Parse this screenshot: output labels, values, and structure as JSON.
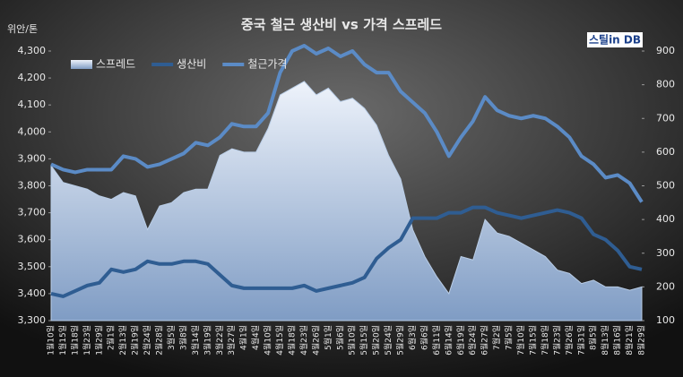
{
  "chart_data": {
    "type": "line",
    "title": "중국 철근 생산비 vs 가격 스프레드",
    "y_label": "위안/톤",
    "source": "스틸in DB",
    "legend": "top-left",
    "categories": [
      "1월10일",
      "1월15일",
      "1월18일",
      "1월23일",
      "1월29일",
      "2월1일",
      "2월13일",
      "2월19일",
      "2월24일",
      "2월28일",
      "3월5일",
      "3월8일",
      "3월14일",
      "3월19일",
      "3월22일",
      "3월27일",
      "4월1일",
      "4월4일",
      "4월10일",
      "4월15일",
      "4월18일",
      "4월23일",
      "4월26일",
      "5월1일",
      "5월6일",
      "5월10일",
      "5월15일",
      "5월20일",
      "5월24일",
      "5월29일",
      "6월3일",
      "6월6일",
      "6월11일",
      "6월14일",
      "6월19일",
      "6월24일",
      "6월27일",
      "7월2일",
      "7월5일",
      "7월10일",
      "7월15일",
      "7월18일",
      "7월23일",
      "7월26일",
      "7월31일",
      "8월5일",
      "8월13일",
      "8월16일",
      "8월21일",
      "8월29일"
    ],
    "series": [
      {
        "name": "스프레드",
        "style": "area",
        "axis": "y2",
        "color": "#b9cde6",
        "values": [
          560,
          510,
          500,
          490,
          470,
          460,
          480,
          470,
          370,
          440,
          450,
          480,
          490,
          490,
          590,
          610,
          600,
          600,
          670,
          770,
          790,
          810,
          770,
          790,
          750,
          760,
          730,
          680,
          590,
          520,
          370,
          290,
          230,
          180,
          290,
          280,
          400,
          360,
          350,
          330,
          310,
          290,
          250,
          240,
          210,
          220,
          200,
          200,
          190,
          200
        ]
      },
      {
        "name": "생산비",
        "style": "line",
        "color": "#2f5d92",
        "values": [
          3400,
          3390,
          3410,
          3430,
          3440,
          3490,
          3480,
          3490,
          3520,
          3510,
          3510,
          3520,
          3520,
          3510,
          3470,
          3430,
          3420,
          3420,
          3420,
          3420,
          3420,
          3430,
          3410,
          3420,
          3430,
          3440,
          3460,
          3530,
          3570,
          3600,
          3680,
          3680,
          3680,
          3700,
          3700,
          3720,
          3720,
          3700,
          3690,
          3680,
          3690,
          3700,
          3710,
          3700,
          3680,
          3620,
          3600,
          3560,
          3500,
          3490
        ]
      },
      {
        "name": "철근가격",
        "style": "line",
        "color": "#5b8bc6",
        "values": [
          3880,
          3860,
          3850,
          3860,
          3860,
          3860,
          3910,
          3900,
          3870,
          3880,
          3900,
          3920,
          3960,
          3950,
          3980,
          4030,
          4020,
          4020,
          4070,
          4220,
          4300,
          4320,
          4290,
          4310,
          4280,
          4300,
          4250,
          4220,
          4220,
          4150,
          4110,
          4070,
          4000,
          3910,
          3980,
          4040,
          4130,
          4080,
          4060,
          4050,
          4060,
          4050,
          4020,
          3980,
          3910,
          3880,
          3830,
          3840,
          3810,
          3740
        ]
      }
    ],
    "ylim": [
      3300,
      4300
    ],
    "yticks": [
      {
        "value": 3300,
        "label": "3,300"
      },
      {
        "value": 3400,
        "label": "3,400"
      },
      {
        "value": 3500,
        "label": "3,500"
      },
      {
        "value": 3600,
        "label": "3,600"
      },
      {
        "value": 3700,
        "label": "3,700"
      },
      {
        "value": 3800,
        "label": "3,800"
      },
      {
        "value": 3900,
        "label": "3,900"
      },
      {
        "value": 4000,
        "label": "4,000"
      },
      {
        "value": 4100,
        "label": "4,100"
      },
      {
        "value": 4200,
        "label": "4,200"
      },
      {
        "value": 4300,
        "label": "4,300"
      }
    ],
    "y2lim": [
      100,
      900
    ],
    "y2ticks": [
      100,
      200,
      300,
      400,
      500,
      600,
      700,
      800,
      900
    ]
  }
}
